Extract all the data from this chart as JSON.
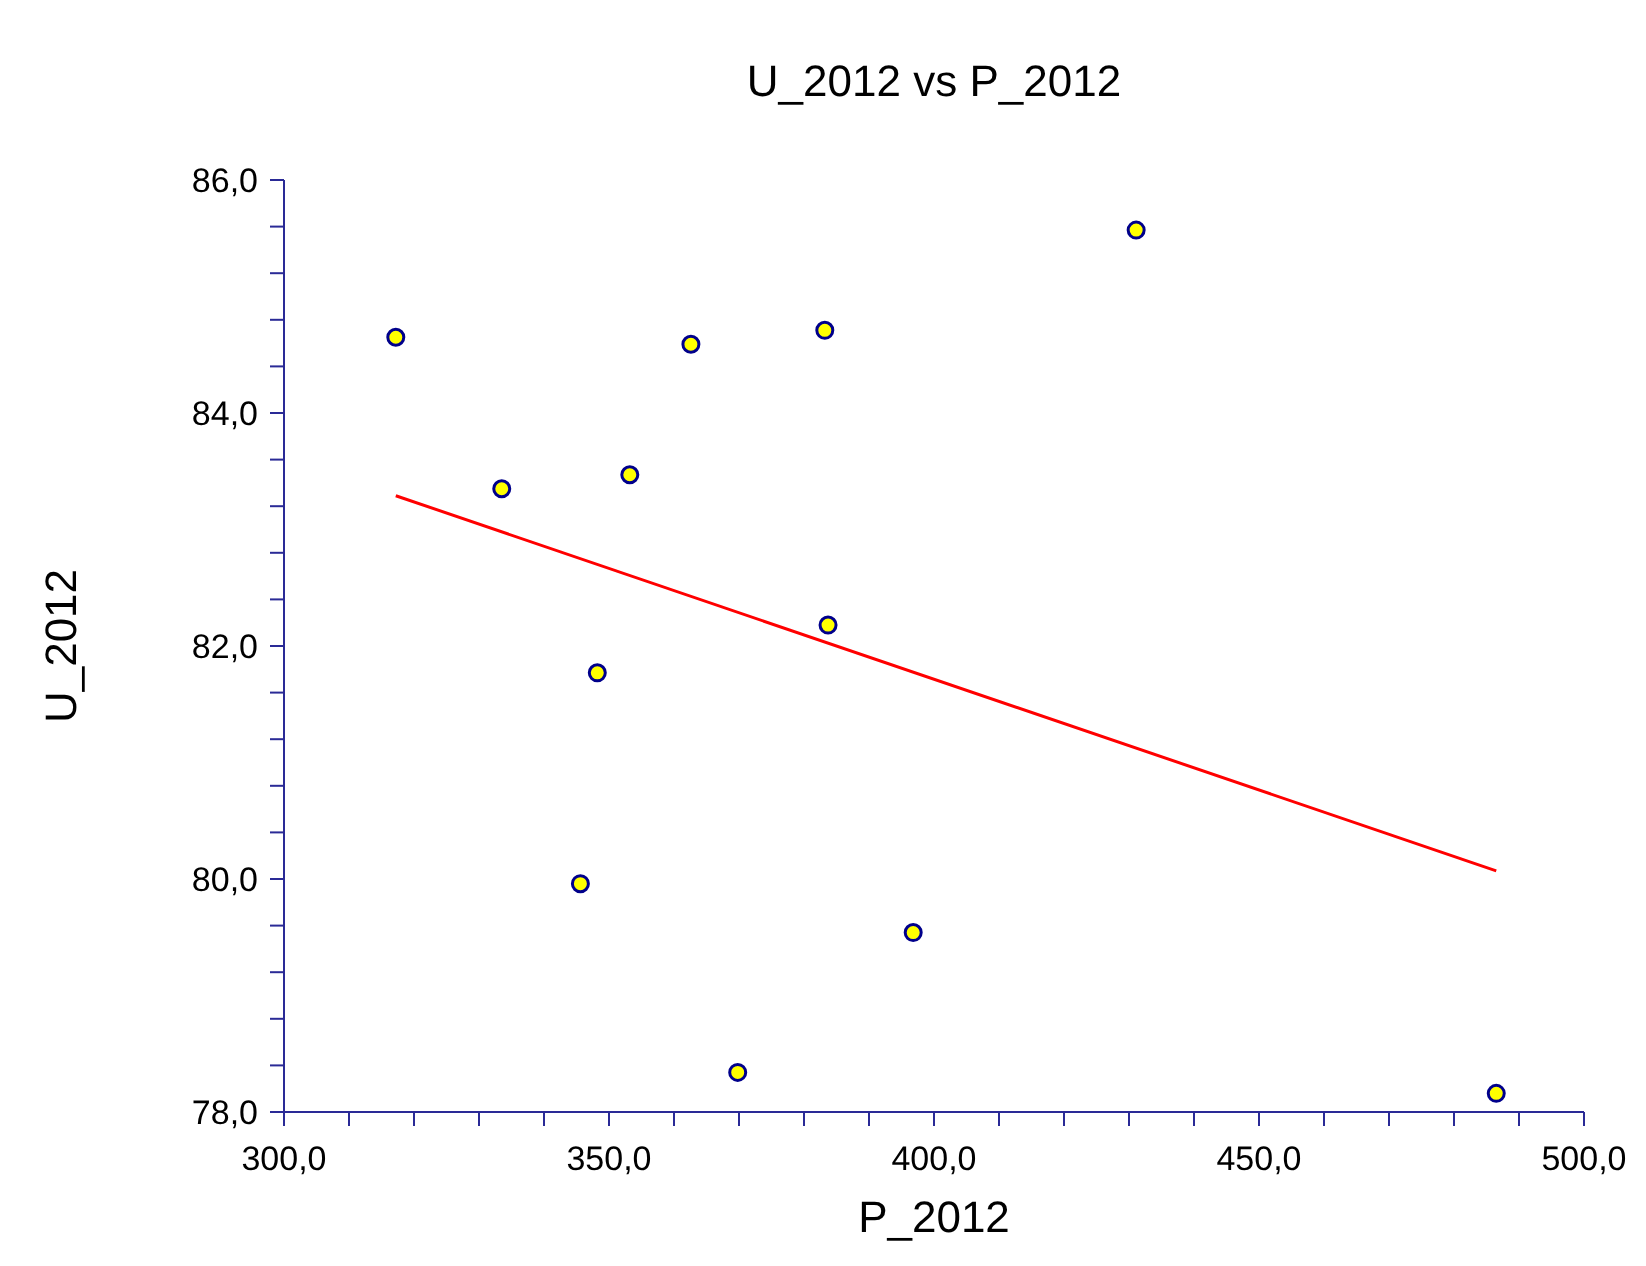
{
  "chart_data": {
    "type": "scatter",
    "title": "U_2012 vs P_2012",
    "xlabel": "P_2012",
    "ylabel": "U_2012",
    "xlim": [
      300,
      500
    ],
    "xticks": [
      {
        "value": 300,
        "label": "300,0"
      },
      {
        "value": 310,
        "label": null
      },
      {
        "value": 320,
        "label": null
      },
      {
        "value": 330,
        "label": null
      },
      {
        "value": 340,
        "label": null
      },
      {
        "value": 350,
        "label": "350,0"
      },
      {
        "value": 360,
        "label": null
      },
      {
        "value": 370,
        "label": null
      },
      {
        "value": 380,
        "label": null
      },
      {
        "value": 390,
        "label": null
      },
      {
        "value": 400,
        "label": "400,0"
      },
      {
        "value": 410,
        "label": null
      },
      {
        "value": 420,
        "label": null
      },
      {
        "value": 430,
        "label": null
      },
      {
        "value": 440,
        "label": null
      },
      {
        "value": 450,
        "label": "450,0"
      },
      {
        "value": 460,
        "label": null
      },
      {
        "value": 470,
        "label": null
      },
      {
        "value": 480,
        "label": null
      },
      {
        "value": 490,
        "label": null
      },
      {
        "value": 500,
        "label": "500,0"
      }
    ],
    "ylim": [
      78,
      86
    ],
    "yticks": [
      {
        "value": 78,
        "label": "78,0"
      },
      {
        "value": 78.4,
        "label": null
      },
      {
        "value": 78.8,
        "label": null
      },
      {
        "value": 79.2,
        "label": null
      },
      {
        "value": 79.6,
        "label": null
      },
      {
        "value": 80,
        "label": "80,0"
      },
      {
        "value": 80.4,
        "label": null
      },
      {
        "value": 80.8,
        "label": null
      },
      {
        "value": 81.2,
        "label": null
      },
      {
        "value": 81.6,
        "label": null
      },
      {
        "value": 82,
        "label": "82,0"
      },
      {
        "value": 82.4,
        "label": null
      },
      {
        "value": 82.8,
        "label": null
      },
      {
        "value": 83.2,
        "label": null
      },
      {
        "value": 83.6,
        "label": null
      },
      {
        "value": 84,
        "label": "84,0"
      },
      {
        "value": 84.4,
        "label": null
      },
      {
        "value": 84.8,
        "label": null
      },
      {
        "value": 85.2,
        "label": null
      },
      {
        "value": 85.6,
        "label": null
      },
      {
        "value": 86,
        "label": "86,0"
      }
    ],
    "series": [
      {
        "type": "scatter",
        "color": "#ffff00",
        "marker": "circle",
        "x": [
          317.2,
          333.5,
          353.2,
          362.6,
          383.2,
          383.7,
          348.2,
          345.6,
          369.8,
          396.8,
          431.1,
          486.5
        ],
        "values": [
          84.65,
          83.35,
          83.47,
          84.59,
          84.71,
          82.18,
          81.77,
          79.96,
          78.34,
          79.54,
          85.57,
          78.16
        ]
      },
      {
        "type": "line",
        "color": "#ff0000",
        "marker": "none",
        "line_style": "solid",
        "x": [
          317.2,
          486.5
        ],
        "values": [
          83.29,
          80.07
        ]
      }
    ]
  }
}
